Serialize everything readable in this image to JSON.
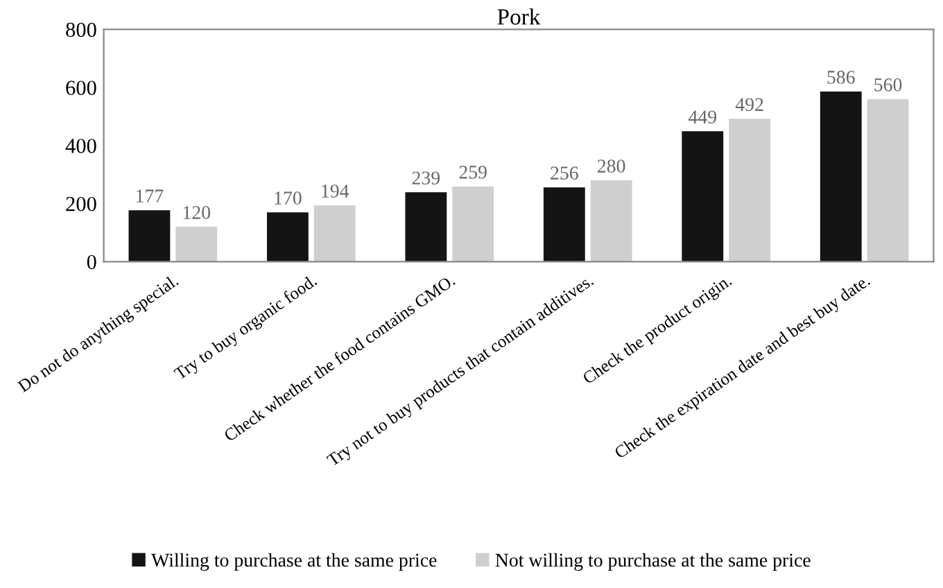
{
  "chart_data": {
    "type": "bar",
    "title": "Pork",
    "categories": [
      "Do not do anything special.",
      "Try to buy organic food.",
      "Check whether the food contains GMO.",
      "Try not to buy products that contain additives.",
      "Check the product origin.",
      "Check the expiration date and best buy date."
    ],
    "series": [
      {
        "name": "Willing to purchase at the same price",
        "color": "#141414",
        "values": [
          177,
          170,
          239,
          256,
          449,
          586
        ]
      },
      {
        "name": "Not willing to purchase at the same price",
        "color": "#cfcfcf",
        "values": [
          120,
          194,
          259,
          280,
          492,
          560
        ]
      }
    ],
    "ylim": [
      0,
      800
    ],
    "yticks": [
      0,
      200,
      400,
      600,
      800
    ],
    "grid": false,
    "legend": "bottom",
    "data_labels": true
  }
}
